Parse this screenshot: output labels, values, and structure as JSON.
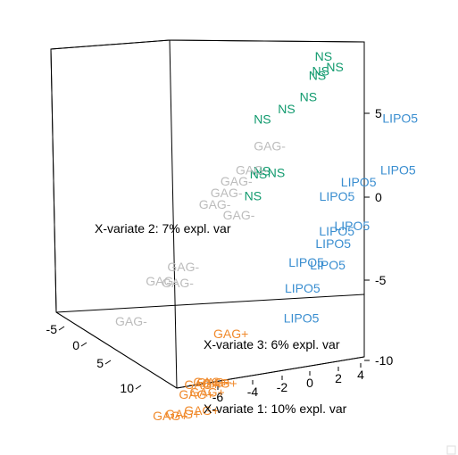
{
  "chart_data": {
    "type": "scatter",
    "title": "",
    "axes": {
      "x": {
        "label": "X-variate 1: 10% expl. var",
        "ticks": [
          4,
          2,
          0,
          -2,
          -4,
          -6
        ]
      },
      "y": {
        "label": "X-variate 2: 7% expl. var",
        "ticks": [
          -5,
          0,
          5,
          10
        ]
      },
      "z": {
        "label": "X-variate 3: 6% expl. var",
        "ticks": [
          5,
          0,
          -5,
          -10
        ]
      }
    },
    "groups": [
      {
        "name": "LIPO5",
        "color": "#3a8ed0",
        "points": [
          {
            "x": -5.5,
            "y": -2.0,
            "z": 7.5
          },
          {
            "x": -6.8,
            "y": 0.0,
            "z": 5.5
          },
          {
            "x": -5.3,
            "y": 1.0,
            "z": 5.0
          },
          {
            "x": -4.8,
            "y": 2.0,
            "z": 4.5
          },
          {
            "x": -5.5,
            "y": 3.0,
            "z": 3.0
          },
          {
            "x": -6.0,
            "y": 2.5,
            "z": 3.2
          },
          {
            "x": -5.3,
            "y": 3.0,
            "z": 2.3
          },
          {
            "x": -5.7,
            "y": 4.0,
            "z": 1.5
          },
          {
            "x": -4.5,
            "y": 4.0,
            "z": 1.5
          },
          {
            "x": -5.0,
            "y": 5.0,
            "z": 0.5
          },
          {
            "x": -6.0,
            "y": 6.5,
            "z": -0.5
          }
        ]
      },
      {
        "name": "NS",
        "color": "#119a6e",
        "points": [
          {
            "x": -1.0,
            "y": -3.0,
            "z": 10.0
          },
          {
            "x": -1.5,
            "y": -3.2,
            "z": 9.4
          },
          {
            "x": -1.2,
            "y": -2.5,
            "z": 9.4
          },
          {
            "x": -0.8,
            "y": -2.8,
            "z": 9.0
          },
          {
            "x": -1.0,
            "y": -1.8,
            "z": 8.2
          },
          {
            "x": 0.0,
            "y": -1.5,
            "z": 7.5
          },
          {
            "x": 1.0,
            "y": -1.0,
            "z": 7.0
          },
          {
            "x": -1.2,
            "y": 1.0,
            "z": 5.0
          },
          {
            "x": -0.4,
            "y": 1.0,
            "z": 5.0
          },
          {
            "x": -0.2,
            "y": 1.0,
            "z": 4.8
          },
          {
            "x": -0.6,
            "y": 2.0,
            "z": 4.0
          }
        ]
      },
      {
        "name": "GAG-",
        "color": "#bcbcbc",
        "points": [
          {
            "x": 1.0,
            "y": -1.0,
            "z": 5.5
          },
          {
            "x": 1.3,
            "y": 0.0,
            "z": 4.5
          },
          {
            "x": 1.8,
            "y": 0.5,
            "z": 4.0
          },
          {
            "x": 2.0,
            "y": 1.0,
            "z": 3.5
          },
          {
            "x": 2.3,
            "y": 1.5,
            "z": 3.0
          },
          {
            "x": 0.6,
            "y": 2.0,
            "z": 2.8
          },
          {
            "x": 3.0,
            "y": 3.0,
            "z": 0.0
          },
          {
            "x": 2.6,
            "y": 4.0,
            "z": -0.5
          },
          {
            "x": 3.5,
            "y": 4.0,
            "z": -0.5
          },
          {
            "x": 4.5,
            "y": 5.0,
            "z": -2.5
          }
        ]
      },
      {
        "name": "GAG+",
        "color": "#f08a2c",
        "points": [
          {
            "x": -1.0,
            "y": 5.0,
            "z": -2.5
          },
          {
            "x": -2.5,
            "y": 8.0,
            "z": -4.0
          },
          {
            "x": -2.2,
            "y": 8.0,
            "z": -4.0
          },
          {
            "x": -2.0,
            "y": 8.0,
            "z": -4.0
          },
          {
            "x": -1.5,
            "y": 8.0,
            "z": -4.2
          },
          {
            "x": -1.8,
            "y": 8.0,
            "z": -4.6
          },
          {
            "x": -1.2,
            "y": 8.0,
            "z": -4.8
          },
          {
            "x": -2.2,
            "y": 9.0,
            "z": -5.2
          },
          {
            "x": -1.5,
            "y": 9.5,
            "z": -5.3
          },
          {
            "x": -0.8,
            "y": 9.5,
            "z": -5.5
          }
        ]
      }
    ]
  }
}
